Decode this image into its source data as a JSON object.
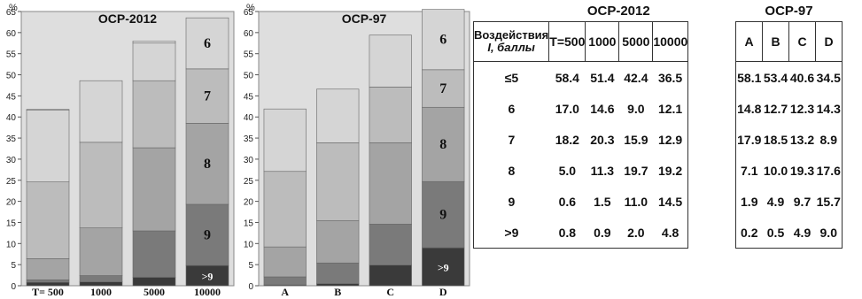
{
  "colors": {
    "plot_bg": "#dedede",
    "levels": {
      "le5": "#ebebeb",
      "6": "#d5d5d5",
      "7": "#bcbcbc",
      "8": "#a4a4a4",
      "9": "#7a7a7a",
      "gt9": "#3a3a3a"
    }
  },
  "chart_data": [
    {
      "type": "bar",
      "stacked": true,
      "title": "OCP-2012",
      "ylabel": "%",
      "ylim": [
        0,
        65
      ],
      "yticks": [
        0,
        5,
        10,
        15,
        20,
        25,
        30,
        35,
        40,
        45,
        50,
        55,
        60,
        65
      ],
      "categories": [
        "T= 500",
        "1000",
        "5000",
        "10000"
      ],
      "series": [
        {
          "name": ">9",
          "values": [
            0.8,
            0.9,
            2.0,
            4.8
          ]
        },
        {
          "name": "9",
          "values": [
            0.6,
            1.5,
            11.0,
            14.5
          ]
        },
        {
          "name": "8",
          "values": [
            5.0,
            11.3,
            19.7,
            19.2
          ]
        },
        {
          "name": "7",
          "values": [
            18.2,
            20.3,
            15.9,
            12.9
          ]
        },
        {
          "name": "6",
          "values": [
            17.0,
            14.6,
            9.0,
            12.1
          ]
        }
      ],
      "segment_labels": [
        {
          "series": "6",
          "category": "10000",
          "text": "6"
        },
        {
          "series": "7",
          "category": "10000",
          "text": "7"
        },
        {
          "series": "8",
          "category": "10000",
          "text": "8"
        },
        {
          "series": "9",
          "category": "10000",
          "text": "9"
        },
        {
          "series": ">9",
          "category": "10000",
          "text": ">9"
        }
      ]
    },
    {
      "type": "bar",
      "stacked": true,
      "title": "OCP-97",
      "ylabel": "%",
      "ylim": [
        0,
        65
      ],
      "yticks": [
        0,
        5,
        10,
        15,
        20,
        25,
        30,
        35,
        40,
        45,
        50,
        55,
        60,
        65
      ],
      "categories": [
        "A",
        "B",
        "C",
        "D"
      ],
      "series": [
        {
          "name": ">9",
          "values": [
            0.2,
            0.5,
            4.9,
            9.0
          ]
        },
        {
          "name": "9",
          "values": [
            1.9,
            4.9,
            9.7,
            15.7
          ]
        },
        {
          "name": "8",
          "values": [
            7.1,
            10.0,
            19.3,
            17.6
          ]
        },
        {
          "name": "7",
          "values": [
            17.9,
            18.5,
            13.2,
            8.9
          ]
        },
        {
          "name": "6",
          "values": [
            14.8,
            12.7,
            12.3,
            14.3
          ]
        }
      ],
      "segment_labels": [
        {
          "series": "6",
          "category": "D",
          "text": "6"
        },
        {
          "series": "7",
          "category": "D",
          "text": "7"
        },
        {
          "series": "8",
          "category": "D",
          "text": "8"
        },
        {
          "series": "9",
          "category": "D",
          "text": "9"
        },
        {
          "series": ">9",
          "category": "D",
          "text": ">9"
        }
      ]
    }
  ],
  "table_2012": {
    "title": "OCP-2012",
    "effect_header_line1": "Воздействия",
    "effect_header_line2": "I, баллы",
    "columns": [
      "T=500",
      "1000",
      "5000",
      "10000"
    ],
    "rows": [
      {
        "label": "≤5",
        "values": [
          "58.4",
          "51.4",
          "42.4",
          "36.5"
        ]
      },
      {
        "label": "6",
        "values": [
          "17.0",
          "14.6",
          "9.0",
          "12.1"
        ]
      },
      {
        "label": "7",
        "values": [
          "18.2",
          "20.3",
          "15.9",
          "12.9"
        ]
      },
      {
        "label": "8",
        "values": [
          "5.0",
          "11.3",
          "19.7",
          "19.2"
        ]
      },
      {
        "label": "9",
        "values": [
          "0.6",
          "1.5",
          "11.0",
          "14.5"
        ]
      },
      {
        "label": ">9",
        "values": [
          "0.8",
          "0.9",
          "2.0",
          "4.8"
        ]
      }
    ]
  },
  "table_97": {
    "title": "OCP-97",
    "columns": [
      "A",
      "B",
      "C",
      "D"
    ],
    "rows": [
      {
        "values": [
          "58.1",
          "53.4",
          "40.6",
          "34.5"
        ]
      },
      {
        "values": [
          "14.8",
          "12.7",
          "12.3",
          "14.3"
        ]
      },
      {
        "values": [
          "17.9",
          "18.5",
          "13.2",
          "8.9"
        ]
      },
      {
        "values": [
          "7.1",
          "10.0",
          "19.3",
          "17.6"
        ]
      },
      {
        "values": [
          "1.9",
          "4.9",
          "9.7",
          "15.7"
        ]
      },
      {
        "values": [
          "0.2",
          "0.5",
          "4.9",
          "9.0"
        ]
      }
    ]
  }
}
